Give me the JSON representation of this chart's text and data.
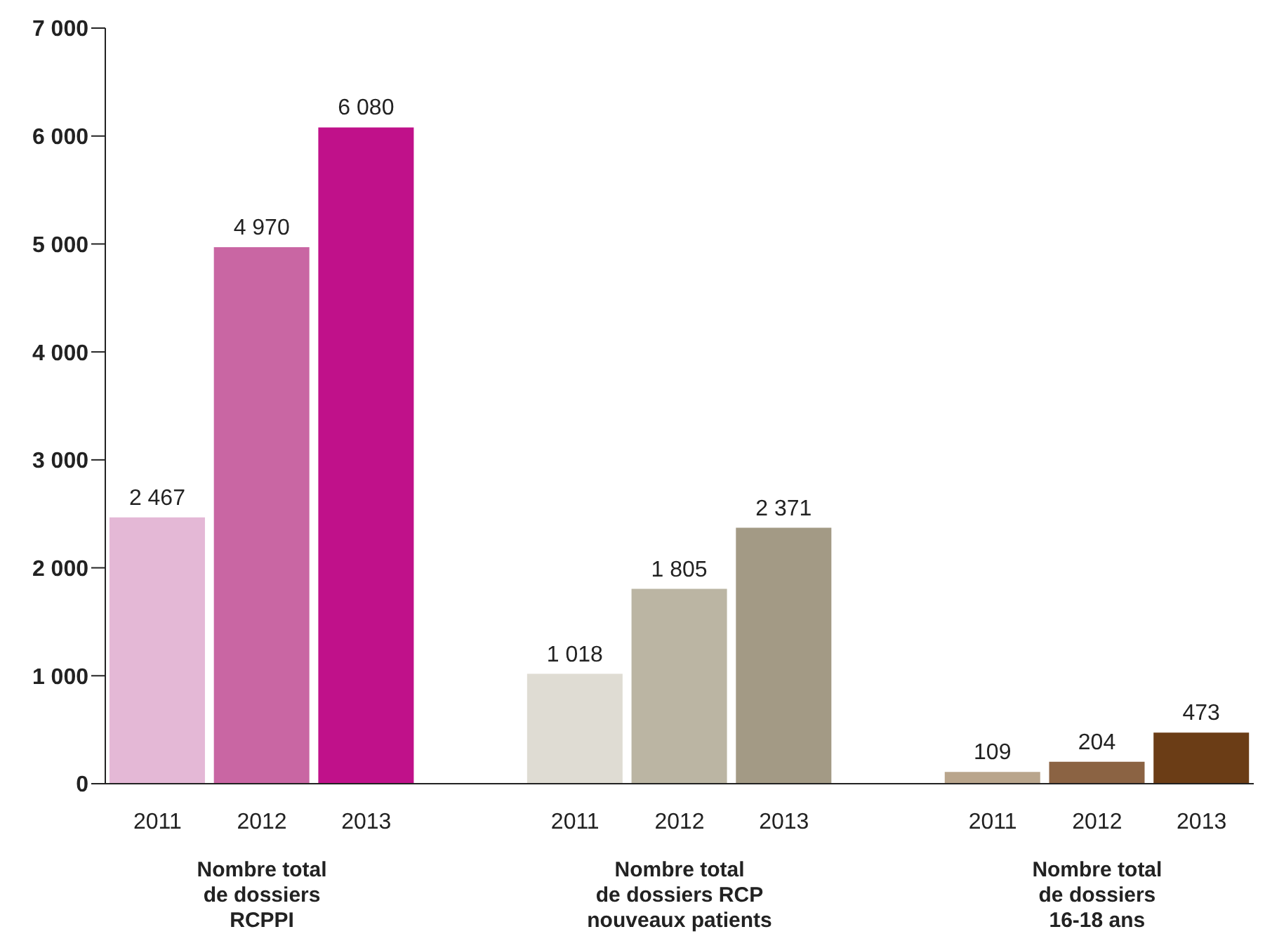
{
  "chart_data": {
    "type": "bar",
    "categories": [
      "2011",
      "2012",
      "2013",
      null,
      "2011",
      "2012",
      "2013",
      null,
      "2011",
      "2012",
      "2013"
    ],
    "values": [
      2467,
      4970,
      6080,
      null,
      1018,
      1805,
      2371,
      null,
      109,
      204,
      473
    ],
    "colors": [
      "#e4b8d6",
      "#c966a3",
      "#c0118a",
      null,
      "#dfdcd3",
      "#bbb5a3",
      "#a39a85",
      null,
      "#b9a58c",
      "#8b6343",
      "#6b3d16"
    ],
    "value_labels": [
      "2 467",
      "4 970",
      "6 080",
      null,
      "1 018",
      "1 805",
      "2 371",
      null,
      "109",
      "204",
      "473"
    ],
    "annotations": [
      "Nombre total\nde dossiers\nRCPPI",
      "Nombre total\nde dossiers RCP\nnouveaux patients",
      "Nombre total\nde dossiers\n16-18 ans"
    ],
    "ylim": [
      0,
      7000
    ],
    "yticks": [
      0,
      {
        "value": 1000,
        "label": "1 000"
      },
      {
        "value": 2000,
        "label": "2 000"
      },
      {
        "value": 3000,
        "label": "3 000"
      },
      {
        "value": 4000,
        "label": "4 000"
      },
      {
        "value": 5000,
        "label": "5 000"
      },
      {
        "value": 6000,
        "label": "6 000"
      },
      {
        "value": 7000,
        "label": "7 000"
      }
    ],
    "grid": false,
    "legend": false
  }
}
